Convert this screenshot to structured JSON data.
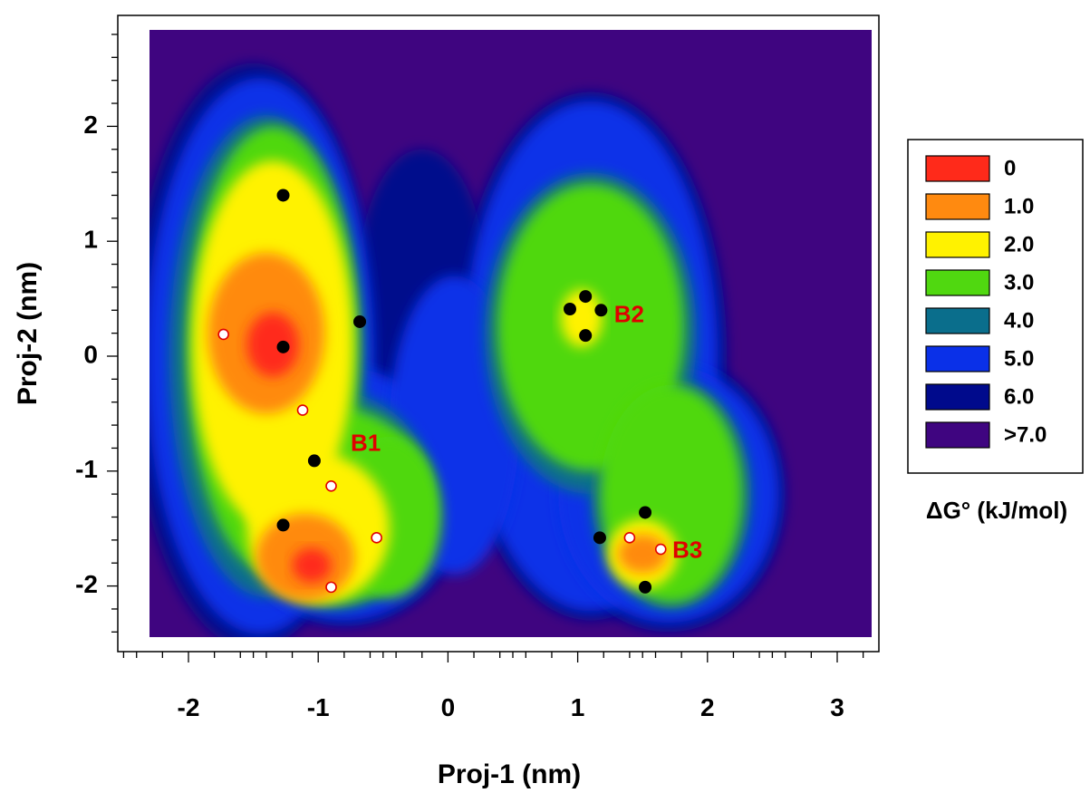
{
  "chart_data": {
    "type": "heatmap",
    "subtype": "free-energy-landscape",
    "title": "",
    "xlabel": "Proj-1 (nm)",
    "ylabel": "Proj-2 (nm)",
    "xlim": [
      -2.55,
      3.4
    ],
    "ylim": [
      -2.6,
      2.95
    ],
    "x_ticks": [
      -2,
      -1,
      0,
      1,
      2,
      3
    ],
    "x_tick_labels": [
      "-2",
      "-1",
      "0",
      "1",
      "2",
      "3"
    ],
    "y_ticks": [
      2,
      1,
      0,
      -1,
      -2
    ],
    "y_tick_labels": [
      "2",
      "1",
      "0",
      "-1",
      "-2"
    ],
    "grid": false,
    "colorbar": {
      "title": "ΔG° (kJ/mol)",
      "placement": "right",
      "levels": [
        {
          "label": "0",
          "color": "#FF2A1A"
        },
        {
          "label": "1.0",
          "color": "#FF8A10"
        },
        {
          "label": "2.0",
          "color": "#FFF200"
        },
        {
          "label": "3.0",
          "color": "#50D810"
        },
        {
          "label": "4.0",
          "color": "#0A6E8C"
        },
        {
          "label": "5.0",
          "color": "#0A30E8"
        },
        {
          "label": "6.0",
          "color": "#000A8C"
        },
        {
          "label": ">7.0",
          "color": "#3F0580"
        }
      ]
    },
    "basins": [
      {
        "label": "B1",
        "x": -0.75,
        "y": -0.77
      },
      {
        "label": "B2",
        "x": 1.28,
        "y": 0.35
      },
      {
        "label": "B3",
        "x": 1.73,
        "y": -1.7
      }
    ],
    "black_points": [
      [
        -1.27,
        1.4
      ],
      [
        -0.68,
        0.3
      ],
      [
        -1.27,
        0.08
      ],
      [
        -1.03,
        -0.91
      ],
      [
        -1.27,
        -1.47
      ],
      [
        0.94,
        0.41
      ],
      [
        1.06,
        0.52
      ],
      [
        1.18,
        0.4
      ],
      [
        1.06,
        0.18
      ],
      [
        1.52,
        -1.36
      ],
      [
        1.17,
        -1.58
      ],
      [
        1.52,
        -2.01
      ]
    ],
    "white_points": [
      [
        -1.73,
        0.19
      ],
      [
        -1.12,
        -0.47
      ],
      [
        -0.9,
        -1.13
      ],
      [
        -0.55,
        -1.58
      ],
      [
        -0.9,
        -2.01
      ],
      [
        1.4,
        -1.58
      ],
      [
        1.64,
        -1.68
      ]
    ],
    "energy_regions": [
      {
        "level": 6,
        "x": -1.5,
        "y": 0.0,
        "rx": 0.95,
        "ry": 2.55
      },
      {
        "level": 6,
        "x": -0.8,
        "y": -1.2,
        "rx": 0.95,
        "ry": 1.15
      },
      {
        "level": 6,
        "x": 1.1,
        "y": 0.0,
        "rx": 1.05,
        "ry": 2.3
      },
      {
        "level": 6,
        "x": 1.7,
        "y": -1.2,
        "rx": 0.9,
        "ry": 1.2
      },
      {
        "level": 6,
        "x": -0.2,
        "y": 0.6,
        "rx": 0.5,
        "ry": 1.2
      },
      {
        "level": 5,
        "x": -1.45,
        "y": 0.0,
        "rx": 0.88,
        "ry": 2.42
      },
      {
        "level": 5,
        "x": -0.8,
        "y": -1.2,
        "rx": 0.9,
        "ry": 1.1
      },
      {
        "level": 5,
        "x": 1.1,
        "y": 0.0,
        "rx": 0.98,
        "ry": 2.22
      },
      {
        "level": 5,
        "x": 1.7,
        "y": -1.2,
        "rx": 0.85,
        "ry": 1.12
      },
      {
        "level": 5,
        "x": 0.05,
        "y": -0.6,
        "rx": 0.5,
        "ry": 1.3
      },
      {
        "level": 4,
        "x": -1.4,
        "y": 0.0,
        "rx": 0.75,
        "ry": 2.1
      },
      {
        "level": 4,
        "x": -0.9,
        "y": -1.25,
        "rx": 0.8,
        "ry": 0.95
      },
      {
        "level": 4,
        "x": 1.1,
        "y": 0.2,
        "rx": 0.82,
        "ry": 1.4
      },
      {
        "level": 4,
        "x": 1.72,
        "y": -1.2,
        "rx": 0.62,
        "ry": 1.0
      },
      {
        "level": 3,
        "x": -1.35,
        "y": 0.05,
        "rx": 0.66,
        "ry": 1.95
      },
      {
        "level": 3,
        "x": -0.85,
        "y": -1.3,
        "rx": 0.72,
        "ry": 0.85
      },
      {
        "level": 3,
        "x": 1.1,
        "y": 0.25,
        "rx": 0.72,
        "ry": 1.25
      },
      {
        "level": 3,
        "x": 1.72,
        "y": -1.2,
        "rx": 0.55,
        "ry": 0.95
      },
      {
        "level": 3,
        "x": -0.45,
        "y": -1.4,
        "rx": 0.4,
        "ry": 0.7
      },
      {
        "level": 2,
        "x": -1.35,
        "y": 0.1,
        "rx": 0.62,
        "ry": 1.6
      },
      {
        "level": 2,
        "x": -1.0,
        "y": -1.5,
        "rx": 0.55,
        "ry": 0.65
      },
      {
        "level": 2,
        "x": 1.03,
        "y": 0.33,
        "rx": 0.16,
        "ry": 0.25
      },
      {
        "level": 2,
        "x": 1.5,
        "y": -1.72,
        "rx": 0.27,
        "ry": 0.3
      },
      {
        "level": 1,
        "x": -1.4,
        "y": 0.2,
        "rx": 0.45,
        "ry": 0.7
      },
      {
        "level": 1,
        "x": -1.1,
        "y": -1.75,
        "rx": 0.38,
        "ry": 0.38
      },
      {
        "level": 1,
        "x": 1.5,
        "y": -1.72,
        "rx": 0.19,
        "ry": 0.17
      },
      {
        "level": 0,
        "x": -1.35,
        "y": 0.1,
        "rx": 0.2,
        "ry": 0.28
      },
      {
        "level": 0,
        "x": -1.05,
        "y": -1.82,
        "rx": 0.15,
        "ry": 0.15
      }
    ]
  }
}
